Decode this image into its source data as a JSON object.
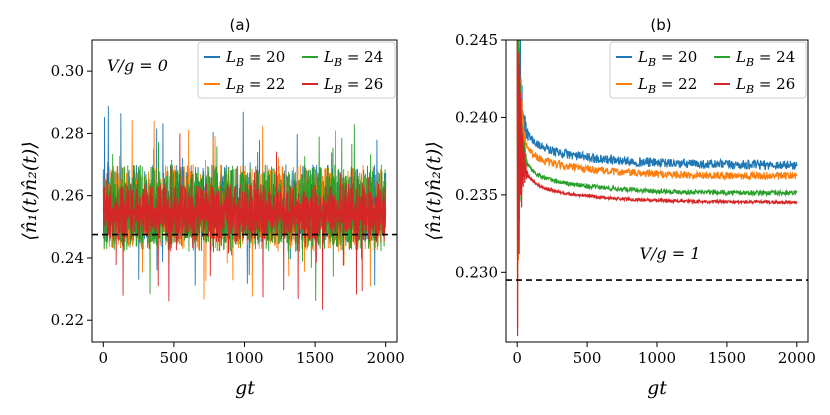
{
  "chart_data": [
    {
      "type": "line",
      "panel_label": "(a)",
      "xlabel": "gt",
      "ylabel": "⟨n̂₁(t)n̂₂(t)⟩",
      "xlim": [
        -80,
        2080
      ],
      "ylim": [
        0.213,
        0.31
      ],
      "xticks": [
        0,
        500,
        1000,
        1500,
        2000
      ],
      "xtick_labels": [
        "0",
        "500",
        "1000",
        "1500",
        "2000"
      ],
      "yticks": [
        0.22,
        0.24,
        0.26,
        0.28,
        0.3
      ],
      "ytick_labels": [
        "0.22",
        "0.24",
        "0.26",
        "0.28",
        "0.30"
      ],
      "annotation": "V/g = 0",
      "reference_line": {
        "y": 0.2475,
        "style": "dashed",
        "color": "#000000"
      },
      "legend_position": "top-right",
      "series": [
        {
          "name": "L_B = 20",
          "color": "#1f77b4",
          "mean": 0.2545,
          "fluct_low": [
            0.225,
            0.245
          ],
          "fluct_high": [
            0.27,
            0.295
          ]
        },
        {
          "name": "L_B = 22",
          "color": "#ff7f0e",
          "mean": 0.2545,
          "fluct_low": [
            0.218,
            0.242
          ],
          "fluct_high": [
            0.27,
            0.29
          ]
        },
        {
          "name": "L_B = 24",
          "color": "#2ca02c",
          "mean": 0.2545,
          "fluct_low": [
            0.22,
            0.242
          ],
          "fluct_high": [
            0.27,
            0.29
          ]
        },
        {
          "name": "L_B = 26",
          "color": "#d62728",
          "mean": 0.2545,
          "fluct_low": [
            0.218,
            0.245
          ],
          "fluct_high": [
            0.264,
            0.284
          ]
        }
      ],
      "x_range": [
        0,
        2000
      ]
    },
    {
      "type": "line",
      "panel_label": "(b)",
      "xlabel": "gt",
      "ylabel": "⟨n̂₁(t)n̂₂(t)⟩",
      "xlim": [
        -80,
        2080
      ],
      "ylim": [
        0.2255,
        0.245
      ],
      "xticks": [
        0,
        500,
        1000,
        1500,
        2000
      ],
      "xtick_labels": [
        "0",
        "500",
        "1000",
        "1500",
        "2000"
      ],
      "yticks": [
        0.23,
        0.235,
        0.24,
        0.245
      ],
      "ytick_labels": [
        "0.230",
        "0.235",
        "0.240",
        "0.245"
      ],
      "annotation": "V/g = 1",
      "reference_line": {
        "y": 0.2295,
        "style": "dashed",
        "color": "#000000"
      },
      "legend_position": "top-right",
      "series": [
        {
          "name": "L_B = 20",
          "color": "#1f77b4",
          "plateau": 0.2385,
          "final": 0.2369,
          "noise": 0.0003
        },
        {
          "name": "L_B = 22",
          "color": "#ff7f0e",
          "plateau": 0.2376,
          "final": 0.2362,
          "noise": 0.00025
        },
        {
          "name": "L_B = 24",
          "color": "#2ca02c",
          "plateau": 0.2365,
          "final": 0.2351,
          "noise": 0.00015
        },
        {
          "name": "L_B = 26",
          "color": "#d62728",
          "plateau": 0.2358,
          "final": 0.2345,
          "noise": 0.0001
        }
      ],
      "x_range": [
        0,
        2000
      ]
    }
  ],
  "legend_entries": [
    {
      "name": "L_B = 20",
      "var": "L",
      "sub": "B",
      "value": "= 20",
      "color": "#1f77b4"
    },
    {
      "name": "L_B = 24",
      "var": "L",
      "sub": "B",
      "value": "= 24",
      "color": "#2ca02c"
    },
    {
      "name": "L_B = 22",
      "var": "L",
      "sub": "B",
      "value": "= 22",
      "color": "#ff7f0e"
    },
    {
      "name": "L_B = 26",
      "var": "L",
      "sub": "B",
      "value": "= 26",
      "color": "#d62728"
    }
  ]
}
